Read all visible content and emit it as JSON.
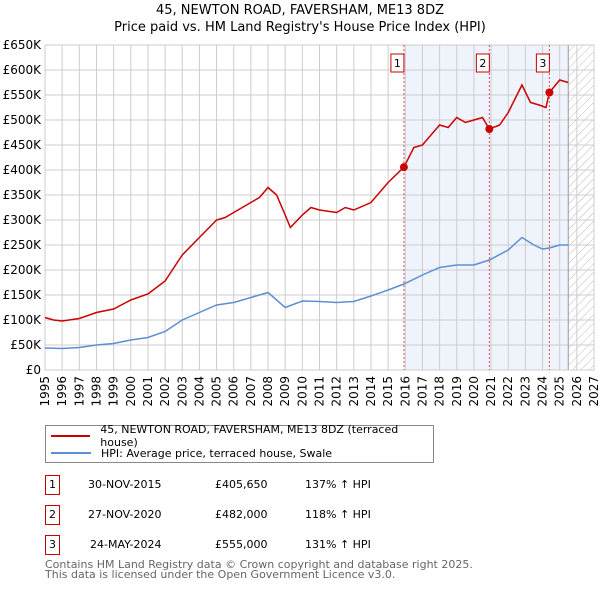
{
  "chart_data": {
    "type": "line",
    "title": "45, NEWTON ROAD, FAVERSHAM, ME13 8DZ",
    "subtitle": "Price paid vs. HM Land Registry's House Price Index (HPI)",
    "xlim": [
      1995,
      2027
    ],
    "ylim": [
      0,
      650000
    ],
    "x_ticks": [
      "1995",
      "1996",
      "1997",
      "1998",
      "1999",
      "2000",
      "2001",
      "2002",
      "2003",
      "2004",
      "2005",
      "2006",
      "2007",
      "2008",
      "2009",
      "2010",
      "2011",
      "2012",
      "2013",
      "2014",
      "2015",
      "2016",
      "2017",
      "2018",
      "2019",
      "2020",
      "2021",
      "2022",
      "2023",
      "2024",
      "2025",
      "2026",
      "2027"
    ],
    "y_ticks": [
      "£0",
      "£50K",
      "£100K",
      "£150K",
      "£200K",
      "£250K",
      "£300K",
      "£350K",
      "£400K",
      "£450K",
      "£500K",
      "£550K",
      "£600K",
      "£650K"
    ],
    "grid": true,
    "shaded_range": [
      2015.92,
      2025.5
    ],
    "hatched_range": [
      2025.5,
      2027
    ],
    "series": [
      {
        "name": "45, NEWTON ROAD, FAVERSHAM, ME13 8DZ (terraced house)",
        "color": "#cc0000",
        "x": [
          1995,
          1995.5,
          1996,
          1997,
          1998,
          1999,
          2000,
          2001,
          2002,
          2003,
          2004,
          2005,
          2005.5,
          2006,
          2007,
          2007.5,
          2008,
          2008.5,
          2009,
          2009.3,
          2010,
          2010.5,
          2011,
          2012,
          2012.5,
          2013,
          2014,
          2015,
          2015.92,
          2016.5,
          2017,
          2018,
          2018.5,
          2019,
          2019.5,
          2020,
          2020.5,
          2020.9,
          2021.5,
          2022,
          2022.8,
          2023.3,
          2023.8,
          2024.2,
          2024.4,
          2025,
          2025.5
        ],
        "y": [
          105000,
          100000,
          98000,
          103000,
          115000,
          122000,
          140000,
          152000,
          178000,
          230000,
          265000,
          300000,
          305000,
          315000,
          335000,
          345000,
          365000,
          350000,
          310000,
          285000,
          310000,
          325000,
          320000,
          315000,
          325000,
          320000,
          335000,
          375000,
          405650,
          445000,
          450000,
          490000,
          485000,
          505000,
          495000,
          500000,
          505000,
          482000,
          490000,
          515000,
          570000,
          535000,
          530000,
          525000,
          555000,
          580000,
          575000
        ]
      },
      {
        "name": "HPI: Average price, terraced house, Swale",
        "color": "#5b8fd4",
        "x": [
          1995,
          1996,
          1997,
          1998,
          1999,
          2000,
          2001,
          2002,
          2003,
          2004,
          2005,
          2006,
          2007,
          2008,
          2009,
          2010,
          2011,
          2012,
          2013,
          2014,
          2015,
          2015.92,
          2017,
          2018,
          2019,
          2020,
          2020.9,
          2022,
          2022.8,
          2023.5,
          2024,
          2024.4,
          2025,
          2025.5
        ],
        "y": [
          44000,
          43000,
          45000,
          50000,
          53000,
          60000,
          65000,
          77000,
          100000,
          115000,
          130000,
          135000,
          145000,
          155000,
          125000,
          138000,
          137000,
          135000,
          137000,
          148000,
          160000,
          172000,
          190000,
          205000,
          210000,
          210000,
          220000,
          240000,
          265000,
          250000,
          242000,
          244000,
          250000,
          250000
        ]
      }
    ],
    "sales": [
      {
        "n": "1",
        "x": 2015.92,
        "y": 405650,
        "date": "30-NOV-2015",
        "price": "£405,650",
        "hpi": "137% ↑ HPI"
      },
      {
        "n": "2",
        "x": 2020.9,
        "y": 482000,
        "date": "27-NOV-2020",
        "price": "£482,000",
        "hpi": "118% ↑ HPI"
      },
      {
        "n": "3",
        "x": 2024.4,
        "y": 555000,
        "date": "24-MAY-2024",
        "price": "£555,000",
        "hpi": "131% ↑ HPI"
      }
    ]
  },
  "footer": {
    "line1": "Contains HM Land Registry data © Crown copyright and database right 2025.",
    "line2": "This data is licensed under the Open Government Licence v3.0."
  }
}
